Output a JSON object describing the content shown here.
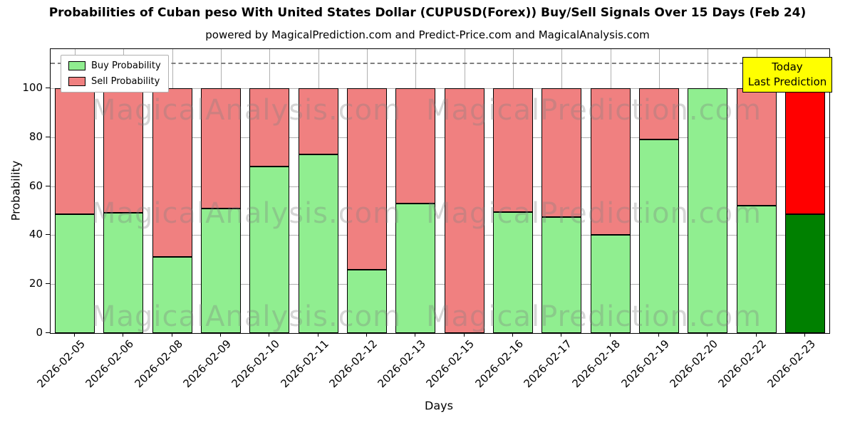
{
  "title": "Probabilities of Cuban peso With United States Dollar (CUPUSD(Forex)) Buy/Sell Signals Over 15 Days (Feb 24)",
  "subtitle": "powered by MagicalPrediction.com and Predict-Price.com and MagicalAnalysis.com",
  "xlabel": "Days",
  "ylabel": "Probability",
  "annotation": {
    "line1": "Today",
    "line2": "Last Prediction",
    "bg_color": "#ffff00"
  },
  "legend": {
    "items": [
      {
        "label": "Buy Probability",
        "color": "#90ee90"
      },
      {
        "label": "Sell Probability",
        "color": "#f08080"
      }
    ]
  },
  "watermark": {
    "left_text": "MagicalAnalysis.com",
    "right_text": "MagicalPrediction.com",
    "color": "rgba(128,128,128,0.32)"
  },
  "chart_data": {
    "type": "bar",
    "stacked": true,
    "title": "Probabilities of Cuban peso With United States Dollar (CUPUSD(Forex)) Buy/Sell Signals Over 15 Days (Feb 24)",
    "xlabel": "Days",
    "ylabel": "Probability",
    "categories": [
      "2026-02-05",
      "2026-02-06",
      "2026-02-08",
      "2026-02-09",
      "2026-02-10",
      "2026-02-11",
      "2026-02-12",
      "2026-02-13",
      "2026-02-15",
      "2026-02-16",
      "2026-02-17",
      "2026-02-18",
      "2026-02-19",
      "2026-02-20",
      "2026-02-22",
      "2026-02-23"
    ],
    "series": [
      {
        "name": "Buy Probability",
        "color": "#90ee90",
        "values": [
          48.5,
          49,
          31,
          51,
          68,
          73,
          26,
          53,
          0,
          49.5,
          47.5,
          40,
          79,
          100,
          52,
          48.5
        ]
      },
      {
        "name": "Sell Probability",
        "color": "#f08080",
        "values": [
          51.5,
          51,
          69,
          49,
          32,
          27,
          74,
          47,
          100,
          50.5,
          52.5,
          60,
          21,
          0,
          48,
          51.5
        ]
      }
    ],
    "last_bar_colors": {
      "buy": "#008000",
      "sell": "#ff0000"
    },
    "ylim": [
      0,
      116
    ],
    "yticks": [
      0,
      20,
      40,
      60,
      80,
      100
    ],
    "grid": true,
    "dashed_line_y": 110,
    "legend_position": "upper left",
    "bar_width_fraction": 0.82
  }
}
